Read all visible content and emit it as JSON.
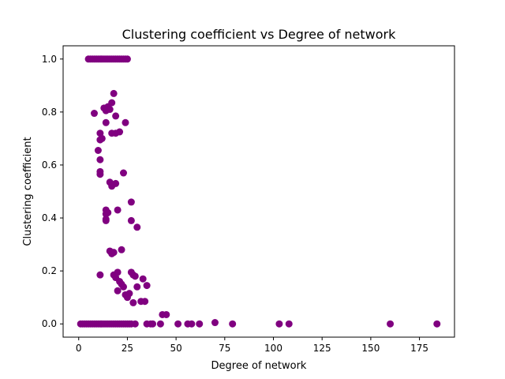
{
  "chart_data": {
    "type": "scatter",
    "title": "Clustering coefficient vs Degree of network",
    "xlabel": "Degree of network",
    "ylabel": "Clustering coefficient",
    "xlim": [
      -8,
      193
    ],
    "ylim": [
      -0.05,
      1.05
    ],
    "xticks": [
      0,
      25,
      50,
      75,
      100,
      125,
      150,
      175
    ],
    "yticks": [
      0.0,
      0.2,
      0.4,
      0.6,
      0.8,
      1.0
    ],
    "xtick_labels": [
      "0",
      "25",
      "50",
      "75",
      "100",
      "125",
      "150",
      "175"
    ],
    "ytick_labels": [
      "0.0",
      "0.2",
      "0.4",
      "0.6",
      "0.8",
      "1.0"
    ],
    "grid": false,
    "marker_color": "#800080",
    "points": [
      [
        5,
        1.0
      ],
      [
        6,
        1.0
      ],
      [
        7,
        1.0
      ],
      [
        8,
        1.0
      ],
      [
        9,
        1.0
      ],
      [
        10,
        1.0
      ],
      [
        11,
        1.0
      ],
      [
        12,
        1.0
      ],
      [
        13,
        1.0
      ],
      [
        14,
        1.0
      ],
      [
        15,
        1.0
      ],
      [
        16,
        1.0
      ],
      [
        17,
        1.0
      ],
      [
        18,
        1.0
      ],
      [
        19,
        1.0
      ],
      [
        20,
        1.0
      ],
      [
        21,
        1.0
      ],
      [
        22,
        1.0
      ],
      [
        23,
        1.0
      ],
      [
        24,
        1.0
      ],
      [
        25,
        1.0
      ],
      [
        18,
        0.87
      ],
      [
        8,
        0.795
      ],
      [
        13,
        0.815
      ],
      [
        14,
        0.805
      ],
      [
        15,
        0.82
      ],
      [
        16,
        0.81
      ],
      [
        17,
        0.835
      ],
      [
        19,
        0.785
      ],
      [
        24,
        0.76
      ],
      [
        14,
        0.76
      ],
      [
        11,
        0.72
      ],
      [
        11,
        0.695
      ],
      [
        12,
        0.7
      ],
      [
        17,
        0.72
      ],
      [
        19,
        0.72
      ],
      [
        21,
        0.725
      ],
      [
        10,
        0.655
      ],
      [
        11,
        0.62
      ],
      [
        11,
        0.575
      ],
      [
        11,
        0.565
      ],
      [
        16,
        0.535
      ],
      [
        17,
        0.52
      ],
      [
        19,
        0.53
      ],
      [
        23,
        0.57
      ],
      [
        27,
        0.46
      ],
      [
        14,
        0.43
      ],
      [
        14,
        0.415
      ],
      [
        15,
        0.42
      ],
      [
        14,
        0.395
      ],
      [
        14,
        0.39
      ],
      [
        20,
        0.43
      ],
      [
        27,
        0.39
      ],
      [
        30,
        0.365
      ],
      [
        16,
        0.275
      ],
      [
        17,
        0.265
      ],
      [
        18,
        0.27
      ],
      [
        22,
        0.28
      ],
      [
        11,
        0.185
      ],
      [
        18,
        0.185
      ],
      [
        19,
        0.175
      ],
      [
        20,
        0.195
      ],
      [
        21,
        0.16
      ],
      [
        22,
        0.15
      ],
      [
        23,
        0.14
      ],
      [
        20,
        0.125
      ],
      [
        27,
        0.195
      ],
      [
        28,
        0.185
      ],
      [
        29,
        0.18
      ],
      [
        30,
        0.14
      ],
      [
        33,
        0.17
      ],
      [
        35,
        0.145
      ],
      [
        24,
        0.11
      ],
      [
        25,
        0.1
      ],
      [
        26,
        0.115
      ],
      [
        28,
        0.08
      ],
      [
        32,
        0.085
      ],
      [
        34,
        0.085
      ],
      [
        43,
        0.035
      ],
      [
        45,
        0.035
      ],
      [
        1,
        0.0
      ],
      [
        2,
        0.0
      ],
      [
        3,
        0.0
      ],
      [
        4,
        0.0
      ],
      [
        5,
        0.0
      ],
      [
        6,
        0.0
      ],
      [
        7,
        0.0
      ],
      [
        8,
        0.0
      ],
      [
        9,
        0.0
      ],
      [
        10,
        0.0
      ],
      [
        11,
        0.0
      ],
      [
        12,
        0.0
      ],
      [
        13,
        0.0
      ],
      [
        14,
        0.0
      ],
      [
        15,
        0.0
      ],
      [
        16,
        0.0
      ],
      [
        17,
        0.0
      ],
      [
        18,
        0.0
      ],
      [
        19,
        0.0
      ],
      [
        20,
        0.0
      ],
      [
        21,
        0.0
      ],
      [
        22,
        0.0
      ],
      [
        23,
        0.0
      ],
      [
        24,
        0.0
      ],
      [
        25,
        0.0
      ],
      [
        26,
        0.0
      ],
      [
        27,
        0.0
      ],
      [
        29,
        0.0
      ],
      [
        35,
        0.0
      ],
      [
        37,
        0.0
      ],
      [
        38,
        0.0
      ],
      [
        42,
        0.0
      ],
      [
        51,
        0.0
      ],
      [
        56,
        0.0
      ],
      [
        58,
        0.0
      ],
      [
        62,
        0.0
      ],
      [
        70,
        0.005
      ],
      [
        79,
        0.0
      ],
      [
        103,
        0.0
      ],
      [
        108,
        0.0
      ],
      [
        160,
        0.0
      ],
      [
        184,
        0.0
      ]
    ]
  }
}
